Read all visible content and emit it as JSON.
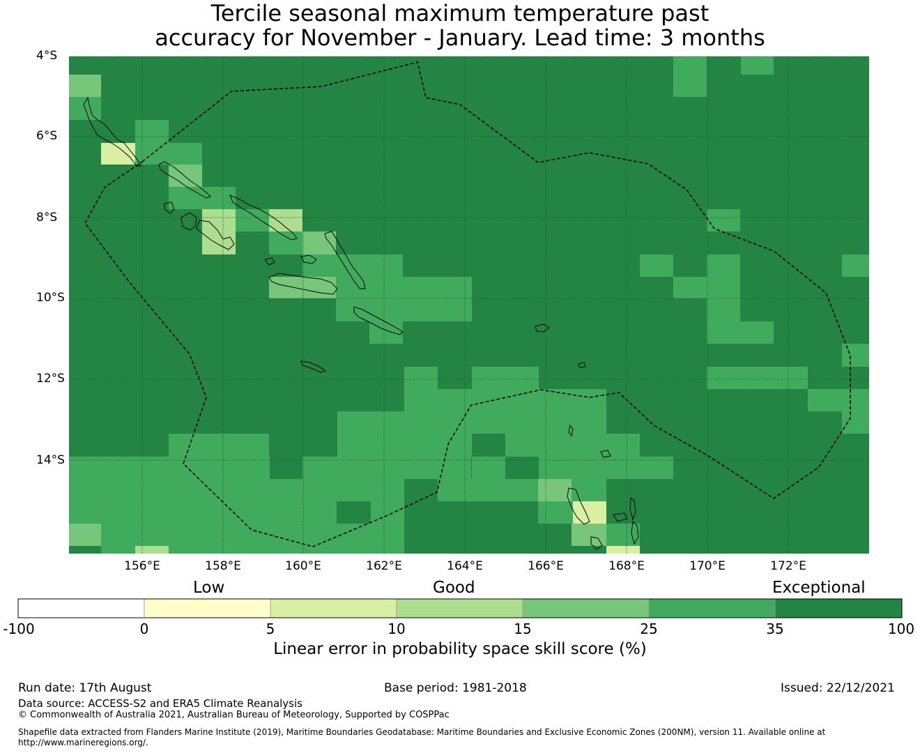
{
  "title_line1": "Tercile seasonal maximum temperature past",
  "title_line2": "accuracy for November - January. Lead time: 3 months",
  "map": {
    "lat_labels": [
      "4°S",
      "6°S",
      "8°S",
      "10°S",
      "12°S",
      "14°S"
    ],
    "lon_labels": [
      "156°E",
      "158°E",
      "160°E",
      "162°E",
      "164°E",
      "166°E",
      "168°E",
      "170°E",
      "172°E"
    ],
    "colors": {
      "c5": "#d9f0a3",
      "c10": "#addd8e",
      "c15": "#78c679",
      "c25": "#41ab5d",
      "c35": "#238443"
    }
  },
  "colorbar": {
    "category_low": "Low",
    "category_good": "Good",
    "category_exceptional": "Exceptional",
    "ticks": [
      "-100",
      "0",
      "5",
      "10",
      "15",
      "25",
      "35",
      "100"
    ],
    "colors": [
      "#ffffff",
      "#ffffcc",
      "#d9f0a3",
      "#addd8e",
      "#78c679",
      "#41ab5d",
      "#238443"
    ],
    "label": "Linear error in probability space skill score (%)"
  },
  "footer": {
    "run_date": "Run date: 17th August",
    "base_period": "Base period: 1981-2018",
    "issued": "Issued: 22/12/2021",
    "data_source": "Data source: ACCESS-S2 and ERA5 Climate Reanalysis",
    "copyright": "© Commonwealth of Australia 2021, Australian Bureau of Meteorology, Supported by COSPPac",
    "shapefile_line1": "Shapefile data extracted from Flanders Marine Institute (2019), Maritime Boundaries Geodatabase: Maritime Boundaries and Exclusive Economic Zones (200NM), version 11. Available online at",
    "shapefile_line2": "http://www.marineregions.org/."
  }
}
